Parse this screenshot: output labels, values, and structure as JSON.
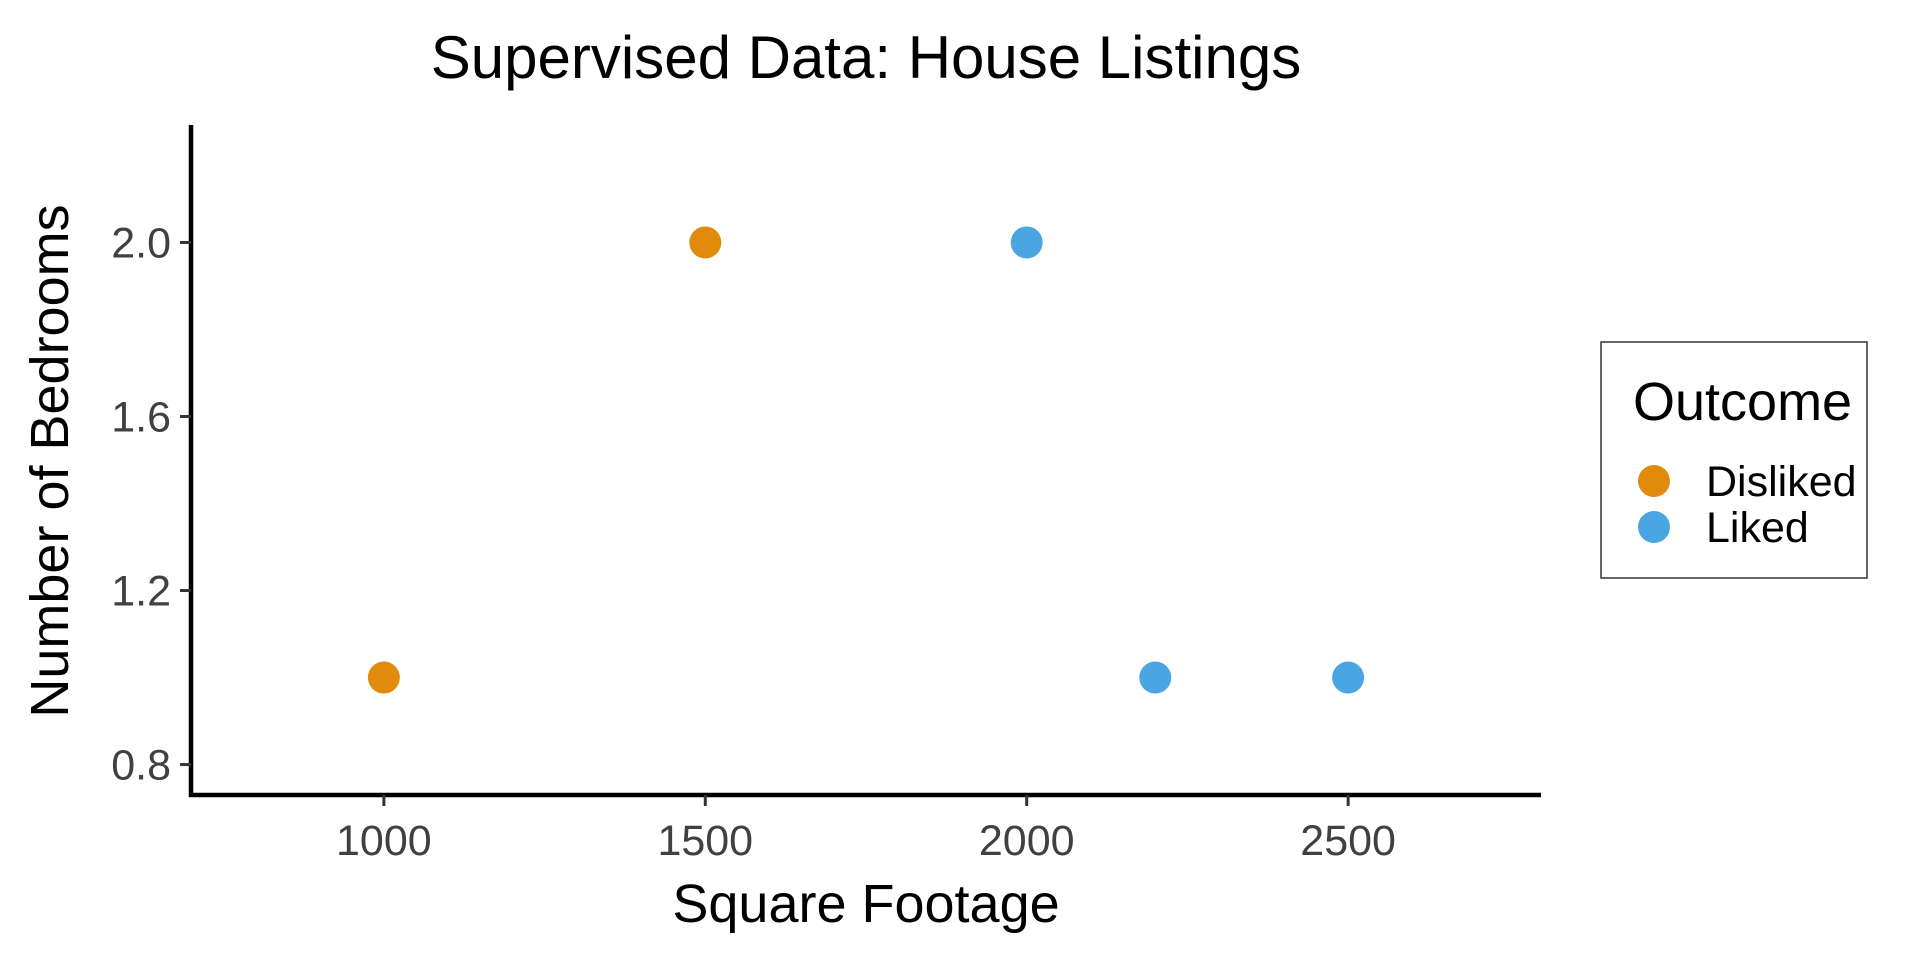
{
  "chart_data": {
    "type": "scatter",
    "title": "Supervised Data: House Listings",
    "xlabel": "Square Footage",
    "ylabel": "Number of Bedrooms",
    "xlim": [
      700,
      2800
    ],
    "ylim": [
      0.73,
      2.27
    ],
    "x_ticks": [
      1000,
      1500,
      2000,
      2500
    ],
    "x_tick_labels": [
      "1000",
      "1500",
      "2000",
      "2500"
    ],
    "y_ticks": [
      0.8,
      1.2,
      1.6,
      2.0
    ],
    "y_tick_labels": [
      "0.8",
      "1.2",
      "1.6",
      "2.0"
    ],
    "grid": false,
    "legend": {
      "title": "Outcome",
      "placement": "right"
    },
    "series": [
      {
        "name": "Disliked",
        "color": "#E08B0C",
        "points": [
          {
            "x": 1000,
            "y": 1
          },
          {
            "x": 1500,
            "y": 2
          }
        ]
      },
      {
        "name": "Liked",
        "color": "#4BA5E2",
        "points": [
          {
            "x": 2000,
            "y": 2
          },
          {
            "x": 2200,
            "y": 1
          },
          {
            "x": 2500,
            "y": 1
          }
        ]
      }
    ]
  }
}
